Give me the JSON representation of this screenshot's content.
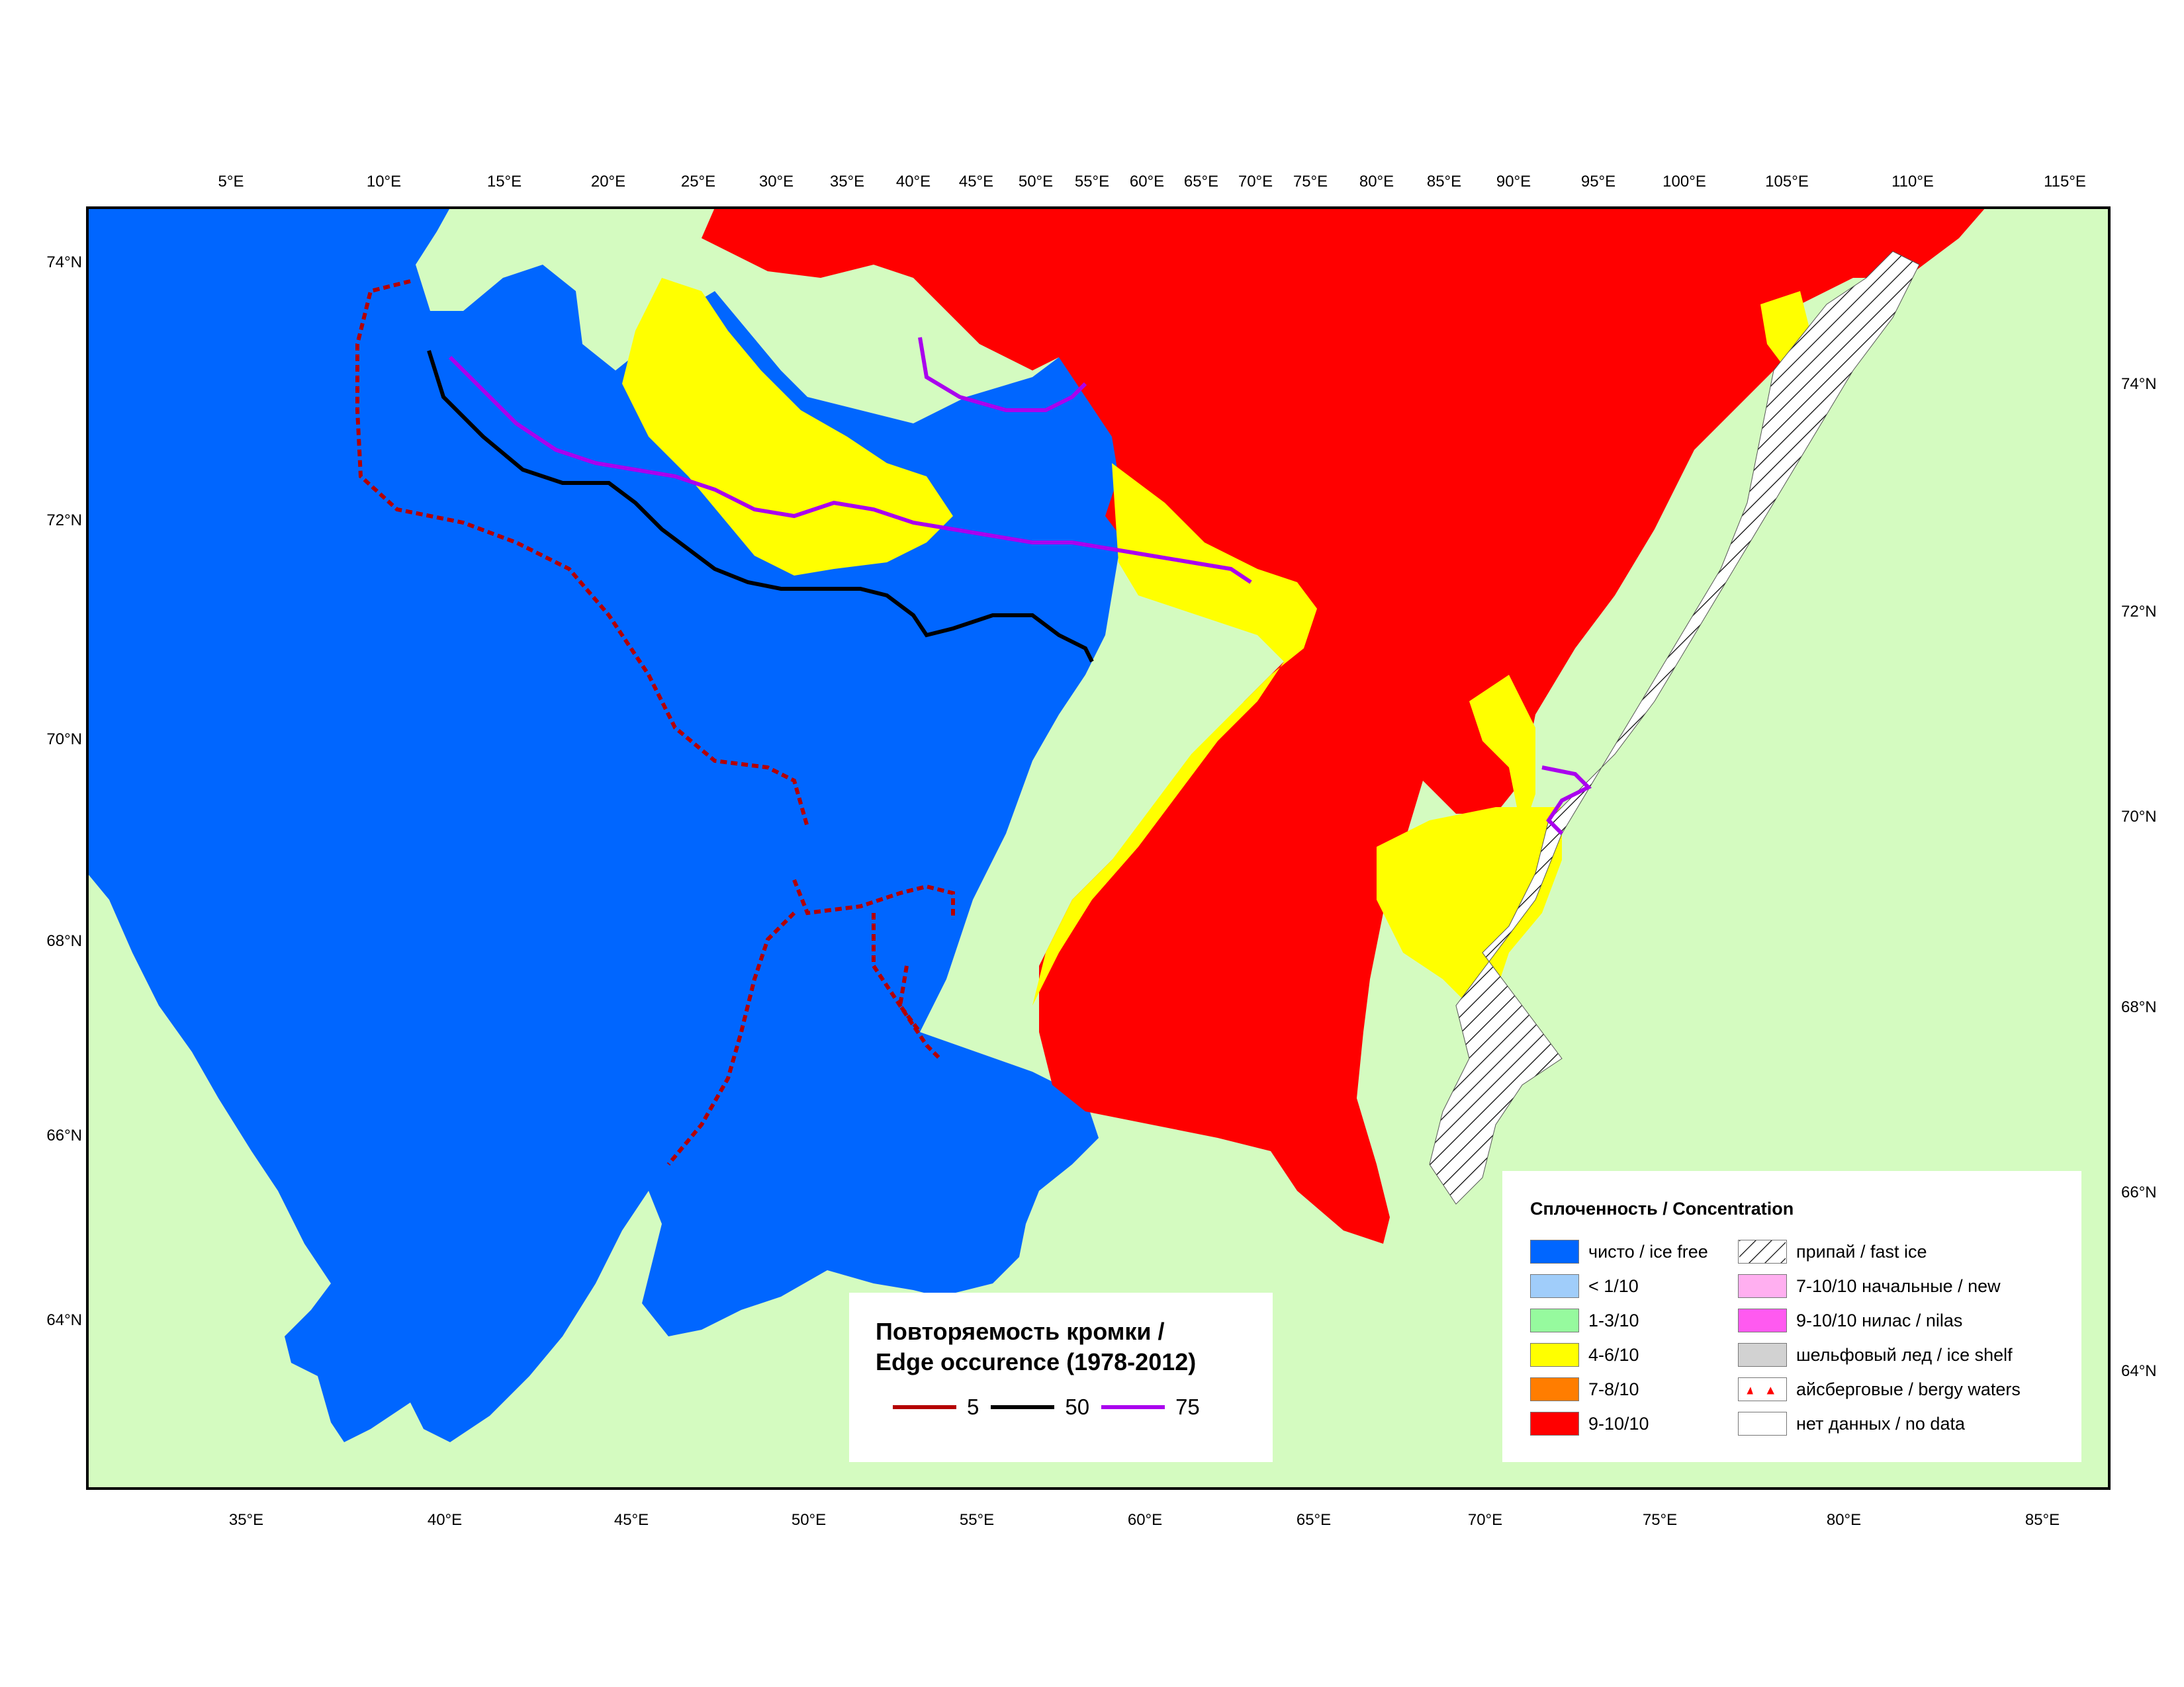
{
  "map": {
    "colors": {
      "land": "#d4fbc0",
      "ice_free": "#0066ff",
      "lt_1_10": "#a0cdfa",
      "c_1_3_10": "#96fa9e",
      "c_4_6_10": "#ffff00",
      "c_7_8_10": "#ff7d00",
      "c_9_10_10": "#ff0000",
      "new_ice": "#ffaff0",
      "nilas": "#ff5af0",
      "ice_shelf": "#d2d2d2",
      "no_data": "#ffffff",
      "frame": "#000000",
      "edge_5": "#b40000",
      "edge_50": "#000000",
      "edge_75": "#aa00ee"
    },
    "top_lon_labels": [
      "5°E",
      "10°E",
      "15°E",
      "20°E",
      "25°E",
      "30°E",
      "35°E",
      "40°E",
      "45°E",
      "50°E",
      "55°E",
      "60°E",
      "65°E",
      "70°E",
      "75°E",
      "80°E",
      "85°E",
      "90°E",
      "95°E",
      "100°E",
      "105°E",
      "110°E",
      "115°E"
    ],
    "bottom_lon_labels": [
      "35°E",
      "40°E",
      "45°E",
      "50°E",
      "55°E",
      "60°E",
      "65°E",
      "70°E",
      "75°E",
      "80°E",
      "85°E"
    ],
    "left_lat_labels": [
      "74°N",
      "72°N",
      "70°N",
      "68°N",
      "66°N",
      "64°N"
    ],
    "right_lat_labels": [
      "74°N",
      "72°N",
      "70°N",
      "68°N",
      "66°N",
      "64°N"
    ]
  },
  "edge_legend": {
    "title_line1": "Повторяемость кромки /",
    "title_line2": "Edge occurence (1978-2012)",
    "items": [
      {
        "label": "5",
        "color": "#b40000"
      },
      {
        "label": "50",
        "color": "#000000"
      },
      {
        "label": "75",
        "color": "#aa00ee"
      }
    ]
  },
  "concentration_legend": {
    "title": "Сплоченность / Concentration",
    "left_items": [
      {
        "label": "чисто / ice free",
        "color": "#0066ff"
      },
      {
        "label": "< 1/10",
        "color": "#a0cdfa"
      },
      {
        "label": "1-3/10",
        "color": "#96fa9e"
      },
      {
        "label": "4-6/10",
        "color": "#ffff00"
      },
      {
        "label": "7-8/10",
        "color": "#ff7d00"
      },
      {
        "label": "9-10/10",
        "color": "#ff0000"
      }
    ],
    "right_items": [
      {
        "label": "припай / fast ice",
        "color": "hatch"
      },
      {
        "label": "7-10/10 начальные / new",
        "color": "#ffaff0"
      },
      {
        "label": "9-10/10 нилас / nilas",
        "color": "#ff5af0"
      },
      {
        "label": "шельфовый лед / ice shelf",
        "color": "#d2d2d2"
      },
      {
        "label": "айсберговые / bergy waters",
        "color": "bergy"
      },
      {
        "label": "нет данных / no data",
        "color": "#ffffff"
      }
    ]
  }
}
